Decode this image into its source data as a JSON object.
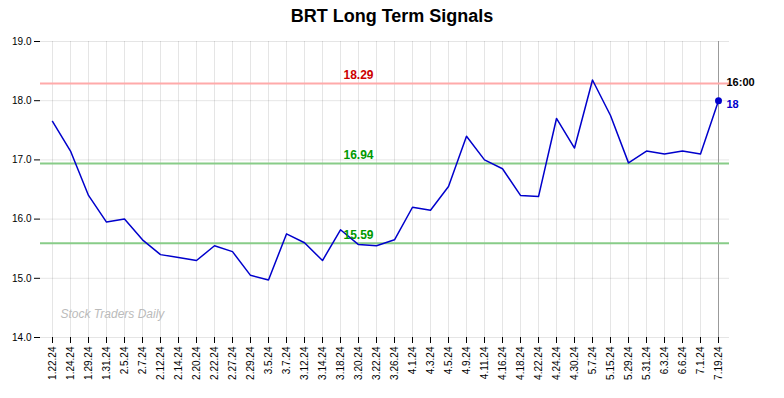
{
  "chart_data": {
    "type": "line",
    "title": "BRT Long Term Signals",
    "categories": [
      "1.22.24",
      "1.24.24",
      "1.29.24",
      "1.31.24",
      "2.5.24",
      "2.7.24",
      "2.12.24",
      "2.14.24",
      "2.20.24",
      "2.22.24",
      "2.27.24",
      "2.29.24",
      "3.5.24",
      "3.7.24",
      "3.12.24",
      "3.14.24",
      "3.18.24",
      "3.20.24",
      "3.22.24",
      "3.26.24",
      "4.1.24",
      "4.3.24",
      "4.5.24",
      "4.9.24",
      "4.11.24",
      "4.16.24",
      "4.18.24",
      "4.22.24",
      "4.24.24",
      "4.30.24",
      "5.7.24",
      "5.15.24",
      "5.29.24",
      "5.31.24",
      "6.3.24",
      "6.6.24",
      "7.1.24",
      "7.19.24"
    ],
    "values": [
      17.65,
      17.15,
      16.4,
      15.95,
      16.0,
      15.65,
      15.4,
      15.35,
      15.3,
      15.55,
      15.45,
      15.05,
      14.97,
      15.75,
      15.6,
      15.3,
      15.82,
      15.57,
      15.55,
      15.65,
      16.2,
      16.15,
      16.55,
      17.4,
      17.0,
      16.85,
      16.4,
      16.38,
      17.7,
      17.2,
      18.35,
      17.75,
      16.95,
      17.15,
      17.1,
      17.15,
      17.1,
      18.0
    ],
    "color": "#0000cc",
    "hlines": [
      {
        "value": 18.29,
        "label": "18.29",
        "color": "#ffaaaa",
        "label_color": "#cc0000"
      },
      {
        "value": 16.94,
        "label": "16.94",
        "color": "#88cc88",
        "label_color": "#009900"
      },
      {
        "value": 15.59,
        "label": "15.59",
        "color": "#88cc88",
        "label_color": "#009900"
      }
    ],
    "annotations": [
      {
        "text": "16:00",
        "color": "#000000"
      },
      {
        "text": "18",
        "color": "#0000cc"
      }
    ],
    "watermark": {
      "text": "Stock Traders Daily",
      "color": "#bbbbbb"
    },
    "ylim": [
      14,
      19
    ],
    "yticks": [
      14,
      15,
      16,
      17,
      18,
      19
    ],
    "grid": true
  }
}
